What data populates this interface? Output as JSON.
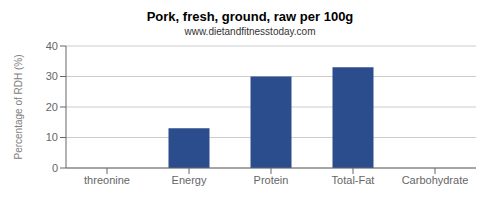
{
  "chart_data": {
    "type": "bar",
    "title": "Pork, fresh, ground, raw per 100g",
    "subtitle": "www.dietandfitnesstoday.com",
    "categories": [
      "threonine",
      "Energy",
      "Protein",
      "Total-Fat",
      "Carbohydrate"
    ],
    "values": [
      0,
      13,
      30,
      33,
      0
    ],
    "color": "#2b4d8e",
    "ylabel": "Percentage of RDH (%)",
    "ylim": [
      0,
      40
    ],
    "yticks": [
      0,
      10,
      20,
      30,
      40
    ],
    "grid": true
  }
}
